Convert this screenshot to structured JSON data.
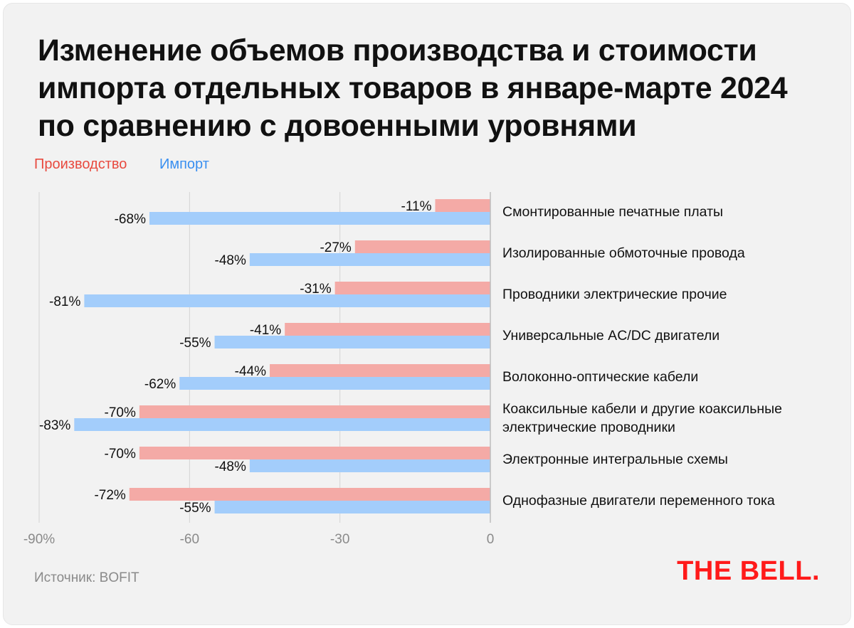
{
  "title": {
    "lines": [
      "Изменение объемов производства и стоимости",
      "импорта отдельных товаров в январе-марте 2024",
      "по сравнению с довоенными уровнями"
    ]
  },
  "legend": {
    "production": "Производство",
    "import": "Импорт"
  },
  "colors": {
    "production": "#f4aaa6",
    "import": "#a3cdfb",
    "production_text": "#e84a3f",
    "import_text": "#3a8ff0",
    "logo": "#ff1a1a"
  },
  "source": "Источник: BOFIT",
  "logo": "THE BELL.",
  "chart_data": {
    "type": "bar",
    "orientation": "horizontal",
    "categories": [
      [
        "Смонтированные печатные платы"
      ],
      [
        "Изолированные обмоточные провода"
      ],
      [
        "Проводники электрические прочие"
      ],
      [
        "Универсальные AC/DC двигатели"
      ],
      [
        "Волоконно-оптические кабели"
      ],
      [
        "Коаксильные кабели и другие коаксильные",
        "электрические проводники"
      ],
      [
        "Электронные интегральные схемы"
      ],
      [
        "Однофазные двигатели переменного тока"
      ]
    ],
    "series": [
      {
        "name": "Производство",
        "values": [
          -11,
          -27,
          -31,
          -41,
          -44,
          -70,
          -70,
          -72
        ],
        "labels": [
          "-11%",
          "-27%",
          "-31%",
          "-41%",
          "-44%",
          "-70%",
          "-70%",
          "-72%"
        ]
      },
      {
        "name": "Импорт",
        "values": [
          -68,
          -48,
          -81,
          -55,
          -62,
          -83,
          -48,
          -55
        ],
        "labels": [
          "-68%",
          "-48%",
          "-81%",
          "-55%",
          "-62%",
          "-83%",
          "-48%",
          "-55%"
        ]
      }
    ],
    "xlim": [
      -90,
      0
    ],
    "xticks": [
      {
        "value": -90,
        "label": "-90%"
      },
      {
        "value": -60,
        "label": "-60"
      },
      {
        "value": -30,
        "label": "-30"
      },
      {
        "value": 0,
        "label": "0"
      }
    ],
    "grid": true,
    "legend_position": "top-left"
  }
}
